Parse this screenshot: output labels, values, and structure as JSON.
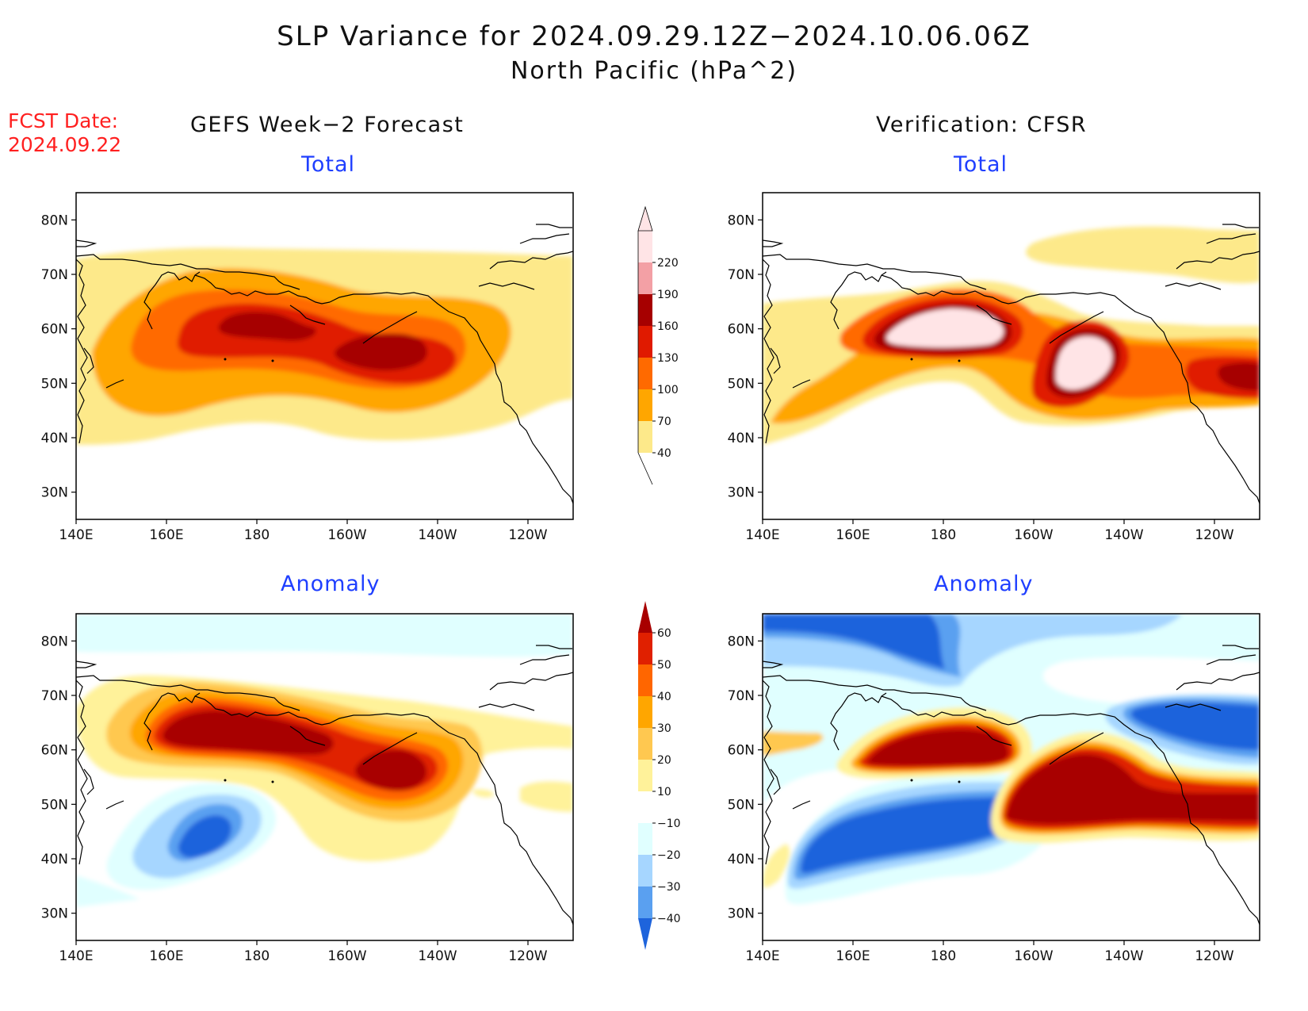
{
  "title": {
    "line1": "SLP Variance for 2024.09.29.12Z−2024.10.06.06Z",
    "line2": "North Pacific (hPa^2)"
  },
  "fcst": {
    "label": "FCST Date:",
    "date": "2024.09.22"
  },
  "columns": {
    "left": "GEFS Week−2 Forecast",
    "right": "Verification: CFSR"
  },
  "panels": {
    "total_forecast": "Total",
    "total_verification": "Total",
    "anomaly_forecast": "Anomaly",
    "anomaly_verification": "Anomaly"
  },
  "axes": {
    "lat_labels": [
      "80N",
      "70N",
      "60N",
      "50N",
      "40N",
      "30N"
    ],
    "lat_values": [
      80,
      70,
      60,
      50,
      40,
      30
    ],
    "lon_labels": [
      "140E",
      "160E",
      "180",
      "160W",
      "140W",
      "120W"
    ],
    "lon_values": [
      140,
      160,
      180,
      200,
      220,
      240
    ],
    "lat_range": [
      25,
      85
    ],
    "lon_range": [
      140,
      250
    ]
  },
  "colorbars": {
    "total": {
      "levels": [
        "40",
        "70",
        "100",
        "130",
        "160",
        "190",
        "220"
      ],
      "colors": [
        "#fde98a",
        "#ffa600",
        "#ff6a00",
        "#e01a00",
        "#a60000",
        "#f3a0a5",
        "#ffe4e6"
      ]
    },
    "anomaly": {
      "levels": [
        "60",
        "50",
        "40",
        "30",
        "20",
        "10",
        "−10",
        "−20",
        "−30",
        "−40"
      ],
      "colors": [
        "#a80000",
        "#e02000",
        "#ff6600",
        "#ffa600",
        "#ffc850",
        "#fff29a",
        "#ffffff",
        "#e0ffff",
        "#a6d6ff",
        "#5aa0f0",
        "#1e64dc"
      ]
    }
  }
}
